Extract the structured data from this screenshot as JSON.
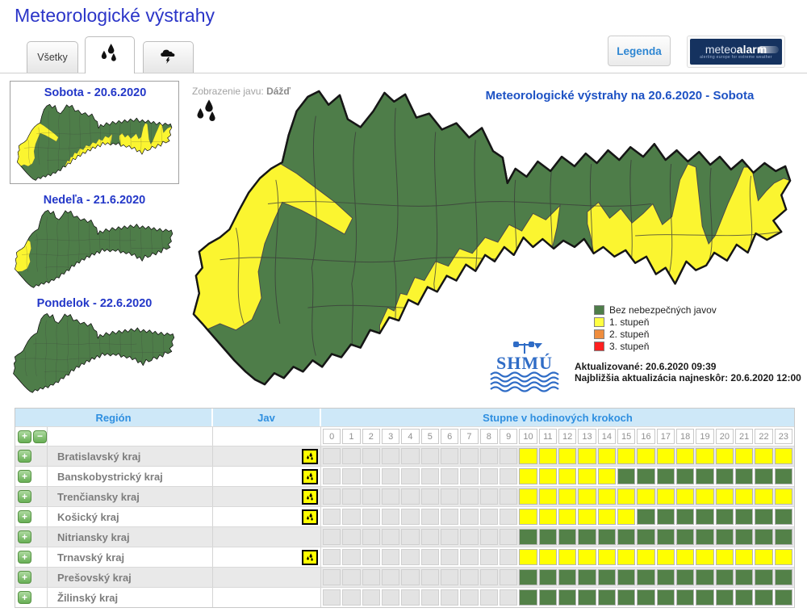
{
  "page_title": "Meteorologické výstrahy",
  "tabs": {
    "all_label": "Všetky"
  },
  "legend_button": "Legenda",
  "meteoalarm": {
    "part1": "meteo",
    "part2": "alarm",
    "caption": "alerting europe for extreme weather"
  },
  "sidebar": {
    "days": [
      {
        "label": "Sobota - 20.6.2020",
        "selected": true
      },
      {
        "label": "Nedeľa - 21.6.2020",
        "selected": false
      },
      {
        "label": "Pondelok - 22.6.2020",
        "selected": false
      }
    ]
  },
  "map_panel": {
    "phenomenon_label": "Zobrazenie javu:",
    "phenomenon_value": "Dážď",
    "title": "Meteorologické výstrahy na 20.6.2020 - Sobota",
    "legend": [
      {
        "label": "Bez nebezpečných javov",
        "color": "#4e7d49"
      },
      {
        "label": "1. stupeň",
        "color": "#ffff42"
      },
      {
        "label": "2. stupeň",
        "color": "#ef8d3e"
      },
      {
        "label": "3. stupeň",
        "color": "#ff2020"
      }
    ],
    "updated": "Aktualizované: 20.6.2020 09:39",
    "next_update": "Najbližšia aktualizácia najneskôr: 20.6.2020 12:00",
    "shmu_logo": "SHMÚ"
  },
  "warning_table": {
    "region_header": "Región",
    "jav_header": "Jav",
    "hours_header": "Stupne v hodinových krokoch",
    "hour_labels": [
      "0",
      "1",
      "2",
      "3",
      "4",
      "5",
      "6",
      "7",
      "8",
      "9",
      "10",
      "11",
      "12",
      "13",
      "14",
      "15",
      "16",
      "17",
      "18",
      "19",
      "20",
      "21",
      "22",
      "23"
    ],
    "level_colors": {
      "past": "#e3e3e3",
      "ok": "#538148",
      "level1": "#ffff00"
    },
    "rows": [
      {
        "region": "Bratislavský kraj",
        "rain_icon": true,
        "levels": "ppppppppppyyyyyyyyyyyyyy"
      },
      {
        "region": "Banskobystrický kraj",
        "rain_icon": true,
        "levels": "ppppppppppyyyyyggggggggg"
      },
      {
        "region": "Trenčiansky kraj",
        "rain_icon": true,
        "levels": "ppppppppppyyyyyyyyyyyyyy"
      },
      {
        "region": "Košický kraj",
        "rain_icon": true,
        "levels": "ppppppppppyyyyyygggggggg"
      },
      {
        "region": "Nitriansky kraj",
        "rain_icon": false,
        "levels": "ppppppppppgggggggggggggg"
      },
      {
        "region": "Trnavský kraj",
        "rain_icon": true,
        "levels": "ppppppppppyyyyyyyyyyyyyy"
      },
      {
        "region": "Prešovský kraj",
        "rain_icon": false,
        "levels": "ppppppppppgggggggggggggg"
      },
      {
        "region": "Žilinský kraj",
        "rain_icon": false,
        "levels": "ppppppppppgggggggggggggg"
      }
    ]
  }
}
